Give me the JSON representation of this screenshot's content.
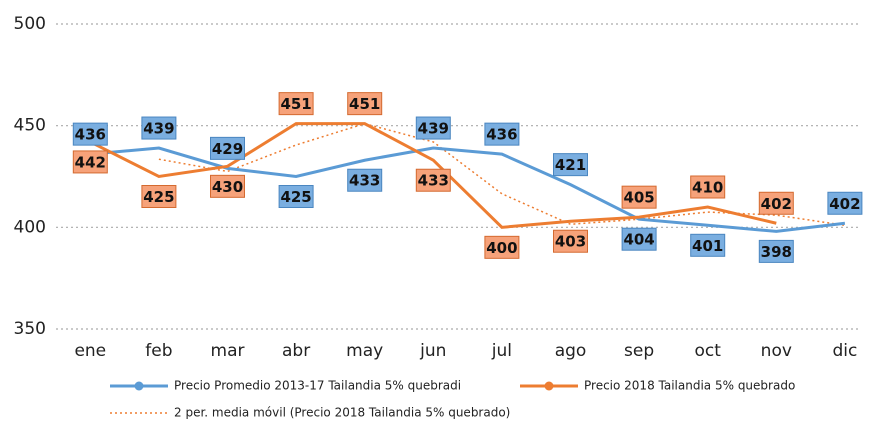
{
  "chart_data": {
    "type": "line",
    "categories": [
      "ene",
      "feb",
      "mar",
      "abr",
      "may",
      "jun",
      "jul",
      "ago",
      "sep",
      "oct",
      "nov",
      "dic"
    ],
    "series": [
      {
        "name": "Precio Promedio 2013-17 Tailandia 5% quebradi",
        "color": "#5b9bd5",
        "style": "solid",
        "data_labels": true,
        "values": [
          436,
          439,
          429,
          425,
          433,
          439,
          436,
          421,
          404,
          401,
          398,
          402
        ]
      },
      {
        "name": "Precio 2018 Tailandia 5% quebrado",
        "color": "#ed7d31",
        "style": "solid",
        "data_labels": true,
        "values": [
          442,
          425,
          430,
          451,
          451,
          433,
          400,
          403,
          405,
          410,
          402,
          null
        ]
      },
      {
        "name": "2 per. media móvil (Precio 2018 Tailandia 5% quebrado)",
        "color": "#ed7d31",
        "style": "dotted",
        "data_labels": false,
        "values": [
          null,
          433.5,
          427.5,
          440.5,
          451,
          442,
          416.5,
          401.5,
          404,
          407.5,
          406,
          401
        ]
      }
    ],
    "ylim": [
      350,
      500
    ],
    "yticks": [
      350,
      400,
      450,
      500
    ],
    "grid": true,
    "legend": "bottom"
  }
}
